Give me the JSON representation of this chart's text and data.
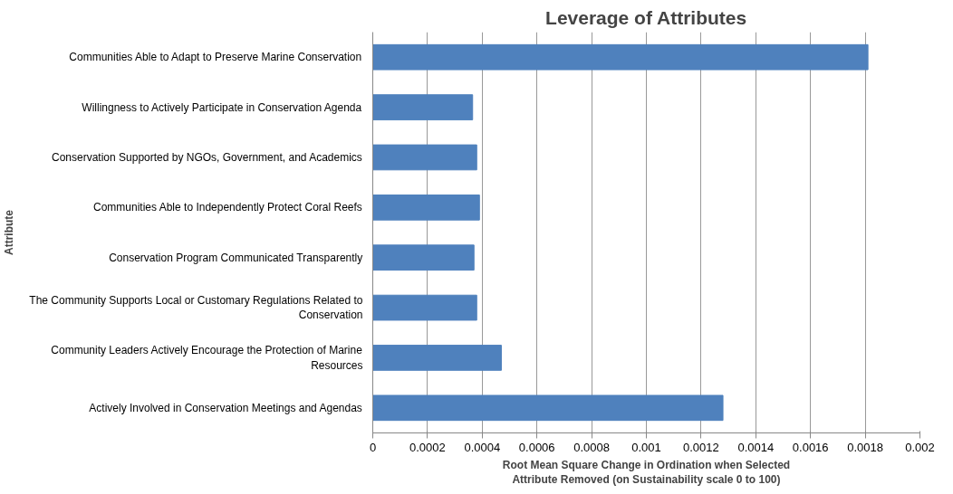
{
  "chart_data": {
    "type": "bar",
    "orientation": "horizontal",
    "title": "Leverage of Attributes",
    "xlabel": "Root Mean Square Change in Ordination when Selected Attribute Removed (on Sustainability scale 0 to 100)",
    "ylabel": "Attribute",
    "categories": [
      "Communities Able to Adapt to Preserve Marine Conservation",
      "Willingness to Actively Participate in Conservation Agenda",
      "Conservation Supported by NGOs, Government, and Academics",
      "Communities Able to Independently Protect Coral Reefs",
      "Conservation Program Communicated Transparently",
      "The Community Supports Local or Customary Regulations Related to Conservation",
      "Community Leaders Actively Encourage the Protection of Marine Resources",
      "Actively Involved in Conservation Meetings and Agendas"
    ],
    "values": [
      0.00181,
      0.000365,
      0.00038,
      0.00039,
      0.00037,
      0.00038,
      0.00047,
      0.00128
    ],
    "color": "#4f81bd",
    "xlim": [
      0,
      0.002
    ],
    "xticks": [
      0,
      0.0002,
      0.0004,
      0.0006,
      0.0008,
      0.001,
      0.0012,
      0.0014,
      0.0016,
      0.0018,
      0.002
    ],
    "grid": "x"
  }
}
